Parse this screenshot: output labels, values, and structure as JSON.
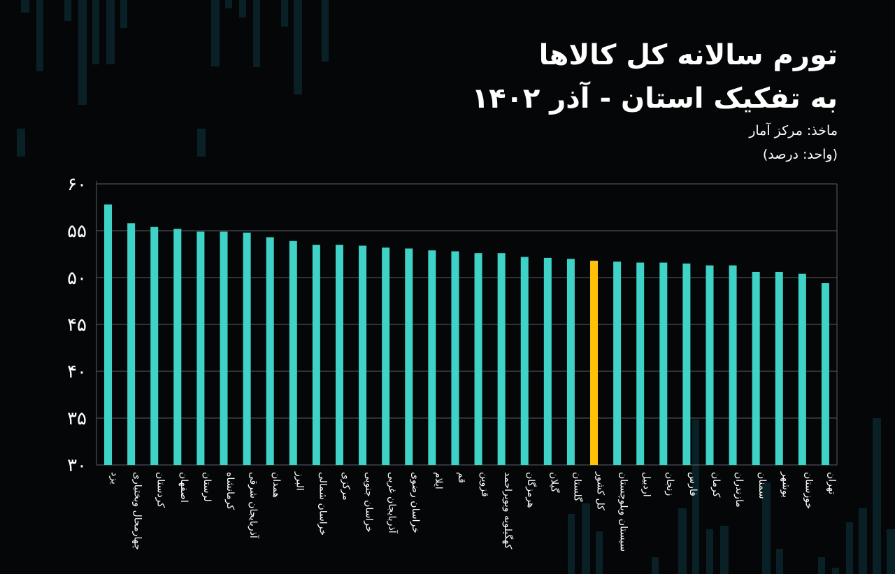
{
  "header": {
    "title_line1": "تورم سالانه کل کالاها",
    "title_line2": "به تفکیک استان - آذر ۱۴۰۲",
    "source": "ماخذ: مرکز آمار",
    "unit": "(واحد: درصد)"
  },
  "colors": {
    "background": "#050607",
    "bar": "#3ed3c6",
    "highlight": "#ffc107",
    "grid": "#5a5f63",
    "decor": "#0c2a33"
  },
  "chart_data": {
    "type": "bar",
    "title": "تورم سالانه کل کالاها به تفکیک استان - آذر ۱۴۰۲",
    "ylim": [
      30,
      60
    ],
    "yticks": [
      30,
      35,
      40,
      45,
      50,
      55,
      60
    ],
    "ytick_labels": [
      "۳۰",
      "۳۵",
      "۴۰",
      "۴۵",
      "۵۰",
      "۵۵",
      "۶۰"
    ],
    "grid": true,
    "highlight_category": "کل کشور",
    "categories": [
      "یزد",
      "چهارمحال وبختیاری",
      "کردستان",
      "اصفهان",
      "لرستان",
      "کرمانشاه",
      "آذربایجان شرقی",
      "همدان",
      "البرز",
      "خراسان شمالی",
      "مرکزی",
      "خراسان جنوبی",
      "آذربایجان غربی",
      "خراسان رضوی",
      "ایلام",
      "قم",
      "قزوین",
      "کهگیلویه وبویراحمد",
      "هرمزگان",
      "گیلان",
      "گلستان",
      "کل کشور",
      "سیستان وبلوچستان",
      "اردبیل",
      "زنجان",
      "فارس",
      "کرمان",
      "مازندران",
      "سمنان",
      "بوشهر",
      "خوزستان",
      "تهران"
    ],
    "values": [
      57.8,
      55.8,
      55.4,
      55.2,
      54.9,
      54.9,
      54.8,
      54.3,
      53.9,
      53.5,
      53.5,
      53.4,
      53.2,
      53.1,
      52.9,
      52.8,
      52.6,
      52.6,
      52.2,
      52.1,
      52.0,
      51.8,
      51.7,
      51.6,
      51.6,
      51.5,
      51.3,
      51.3,
      50.6,
      50.6,
      50.4,
      49.4
    ]
  }
}
